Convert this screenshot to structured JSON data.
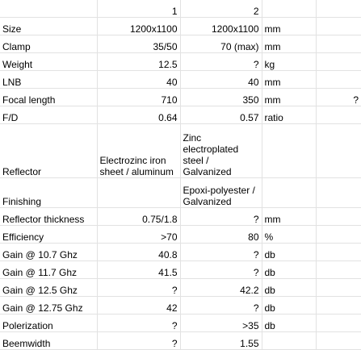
{
  "sheet": {
    "header": [
      "",
      "1",
      "2",
      "",
      ""
    ],
    "rows": [
      [
        "Size",
        "1200x1100",
        "1200x1100",
        "mm",
        ""
      ],
      [
        "Clamp",
        "35/50",
        "70 (max)",
        "mm",
        ""
      ],
      [
        "Weight",
        "12.5",
        "?",
        "kg",
        ""
      ],
      [
        "LNB",
        "40",
        "40",
        "mm",
        ""
      ],
      [
        "Focal length",
        "710",
        "350",
        "mm",
        "?"
      ],
      [
        "F/D",
        "0.64",
        "0.57",
        "ratio",
        ""
      ],
      [
        "Reflector",
        "Electrozinc iron sheet / aluminum",
        "Zinc electroplated steel / Galvanized",
        "",
        ""
      ],
      [
        "Finishing",
        "",
        "Epoxi-polyester / Galvanized",
        "",
        ""
      ],
      [
        "Reflector thickness",
        "0.75/1.8",
        "?",
        "mm",
        ""
      ],
      [
        "Efficiency",
        ">70",
        "80",
        "%",
        ""
      ],
      [
        "Gain @ 10.7 Ghz",
        "40.8",
        "?",
        "db",
        ""
      ],
      [
        "Gain @ 11.7 Ghz",
        "41.5",
        "?",
        "db",
        ""
      ],
      [
        "Gain @ 12.5 Ghz",
        "?",
        "42.2",
        "db",
        ""
      ],
      [
        "Gain @ 12.75 Ghz",
        "42",
        "?",
        "db",
        ""
      ],
      [
        "Polerization",
        "?",
        ">35",
        "db",
        ""
      ],
      [
        "Beemwidth",
        "?",
        "1.55",
        "",
        ""
      ]
    ]
  }
}
